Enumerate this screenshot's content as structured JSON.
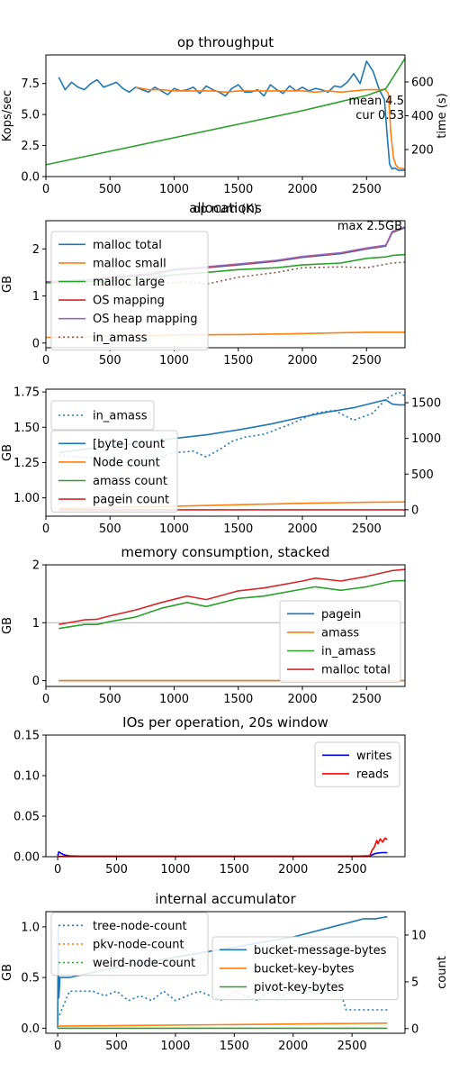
{
  "chart_data": [
    {
      "type": "line",
      "title": "op throughput",
      "xlabel": "op num (K)",
      "ylabel": "Kops/sec",
      "y2label": "time (s)",
      "xlim": [
        0,
        2800
      ],
      "ylim": [
        0,
        9.8
      ],
      "y2lim": [
        40,
        760
      ],
      "xticks": [
        0,
        500,
        1000,
        1500,
        2000,
        2500
      ],
      "yticks": [
        "0.0",
        "2.5",
        "5.0",
        "7.5"
      ],
      "y2ticks": [
        200,
        400,
        600
      ],
      "annotations": [
        "mean 4.5",
        "cur 0.53"
      ],
      "series": [
        {
          "color": "#1f77b4",
          "axis": "left",
          "x": [
            100,
            150,
            200,
            250,
            300,
            350,
            400,
            450,
            500,
            550,
            600,
            650,
            700,
            750,
            800,
            850,
            900,
            950,
            1000,
            1050,
            1100,
            1150,
            1200,
            1250,
            1300,
            1350,
            1400,
            1450,
            1500,
            1550,
            1600,
            1650,
            1700,
            1750,
            1800,
            1850,
            1900,
            1950,
            2000,
            2050,
            2100,
            2150,
            2200,
            2250,
            2300,
            2350,
            2400,
            2450,
            2500,
            2550,
            2600,
            2640,
            2660,
            2680,
            2700,
            2720,
            2750,
            2800
          ],
          "y": [
            8.0,
            7.0,
            7.6,
            7.2,
            7.0,
            7.5,
            7.8,
            7.2,
            7.4,
            7.6,
            7.1,
            6.8,
            7.2,
            7.0,
            6.8,
            7.2,
            6.9,
            6.6,
            7.1,
            6.9,
            7.0,
            7.2,
            6.7,
            7.3,
            7.0,
            6.8,
            6.5,
            7.1,
            7.4,
            6.8,
            6.8,
            7.0,
            6.5,
            7.4,
            7.0,
            6.7,
            7.3,
            6.9,
            7.2,
            6.9,
            7.1,
            7.0,
            6.8,
            7.3,
            7.2,
            7.6,
            8.3,
            7.5,
            9.3,
            8.5,
            7.0,
            6.2,
            3.5,
            1.0,
            0.6,
            0.7,
            0.5,
            0.5
          ]
        },
        {
          "color": "#ff7f0e",
          "axis": "left",
          "x": [
            700,
            800,
            900,
            1000,
            1100,
            1200,
            1300,
            1400,
            1500,
            1600,
            1700,
            1800,
            1900,
            2000,
            2100,
            2200,
            2300,
            2400,
            2500,
            2600,
            2650,
            2670,
            2690,
            2710,
            2730,
            2750,
            2800
          ],
          "y": [
            7.2,
            7.0,
            7.0,
            6.9,
            6.9,
            6.9,
            6.9,
            6.8,
            6.9,
            6.9,
            6.9,
            6.9,
            6.9,
            6.9,
            6.8,
            6.9,
            6.8,
            6.9,
            7.0,
            7.0,
            7.0,
            6.7,
            3.5,
            1.5,
            0.9,
            0.7,
            0.6
          ]
        },
        {
          "color": "#2ca02c",
          "axis": "right",
          "x": [
            0,
            500,
            1000,
            1500,
            2000,
            2500,
            2650,
            2700,
            2750,
            2800
          ],
          "y": [
            110,
            190,
            270,
            350,
            430,
            520,
            560,
            620,
            680,
            740
          ]
        }
      ]
    },
    {
      "type": "line",
      "title": "allocations",
      "ylabel": "GB",
      "xlim": [
        0,
        2800
      ],
      "ylim": [
        -0.1,
        2.6
      ],
      "xticks": [
        0,
        500,
        1000,
        1500,
        2000,
        2500
      ],
      "yticks": [
        0,
        1,
        2
      ],
      "annotations": [
        "max 2.5GB"
      ],
      "legend_position": "upper left",
      "series": [
        {
          "name": "malloc total",
          "color": "#1f77b4",
          "style": "solid",
          "x": [
            0,
            300,
            500,
            800,
            1000,
            1250,
            1500,
            1800,
            2000,
            2300,
            2500,
            2650,
            2700,
            2800
          ],
          "y": [
            1.3,
            1.33,
            1.38,
            1.45,
            1.55,
            1.6,
            1.66,
            1.74,
            1.82,
            1.9,
            2.0,
            2.06,
            2.35,
            2.45
          ]
        },
        {
          "name": "malloc small",
          "color": "#ff7f0e",
          "style": "solid",
          "x": [
            0,
            500,
            1000,
            1500,
            2000,
            2500,
            2800
          ],
          "y": [
            0.12,
            0.14,
            0.17,
            0.18,
            0.2,
            0.23,
            0.23
          ]
        },
        {
          "name": "malloc large",
          "color": "#2ca02c",
          "style": "solid",
          "x": [
            0,
            300,
            500,
            800,
            1000,
            1250,
            1500,
            1800,
            2000,
            2300,
            2500,
            2650,
            2700,
            2800
          ],
          "y": [
            1.28,
            1.3,
            1.32,
            1.37,
            1.45,
            1.5,
            1.56,
            1.6,
            1.66,
            1.7,
            1.8,
            1.83,
            1.86,
            1.88
          ]
        },
        {
          "name": "OS mapping",
          "color": "#d62728",
          "style": "solid",
          "x": [
            0,
            300,
            500,
            800,
            1000,
            1250,
            1500,
            1800,
            2000,
            2300,
            2500,
            2650,
            2700,
            2800
          ],
          "y": [
            1.3,
            1.34,
            1.39,
            1.46,
            1.56,
            1.61,
            1.67,
            1.75,
            1.83,
            1.91,
            2.01,
            2.07,
            2.36,
            2.46
          ]
        },
        {
          "name": "OS heap mapping",
          "color": "#9467bd",
          "style": "solid",
          "x": [
            0,
            300,
            500,
            800,
            1000,
            1250,
            1500,
            1800,
            2000,
            2300,
            2500,
            2650,
            2700,
            2800
          ],
          "y": [
            1.3,
            1.34,
            1.4,
            1.47,
            1.57,
            1.62,
            1.68,
            1.76,
            1.84,
            1.92,
            2.02,
            2.08,
            2.37,
            2.47
          ]
        },
        {
          "name": "in_amass",
          "color": "#8c564b",
          "style": "dotted",
          "x": [
            0,
            300,
            600,
            900,
            1100,
            1250,
            1500,
            1800,
            2000,
            2300,
            2500,
            2700,
            2800
          ],
          "y": [
            1.3,
            1.25,
            1.2,
            1.26,
            1.3,
            1.25,
            1.4,
            1.5,
            1.6,
            1.62,
            1.6,
            1.7,
            1.72
          ]
        }
      ]
    },
    {
      "type": "line",
      "ylabel": "GB",
      "xlim": [
        0,
        2800
      ],
      "ylim": [
        0.87,
        1.77
      ],
      "y2lim": [
        -90,
        1690
      ],
      "xticks": [
        0,
        500,
        1000,
        1500,
        2000,
        2500
      ],
      "yticks": [
        "1.00",
        "1.25",
        "1.50",
        "1.75"
      ],
      "y2ticks": [
        0,
        500,
        1000,
        1500
      ],
      "legend_position": "upper left / center left",
      "series": [
        {
          "name": "in_amass",
          "color": "#1f77b4",
          "style": "dotted",
          "axis": "left",
          "x": [
            100,
            400,
            700,
            1000,
            1150,
            1250,
            1350,
            1450,
            1550,
            1700,
            1900,
            2100,
            2250,
            2400,
            2550,
            2650,
            2750,
            2800
          ],
          "y": [
            1.3,
            1.28,
            1.25,
            1.32,
            1.33,
            1.29,
            1.34,
            1.4,
            1.43,
            1.45,
            1.52,
            1.6,
            1.62,
            1.55,
            1.6,
            1.7,
            1.75,
            1.72
          ]
        },
        {
          "name": "[byte] count",
          "color": "#1f77b4",
          "style": "solid",
          "axis": "right",
          "x": [
            100,
            400,
            700,
            1000,
            1250,
            1500,
            1750,
            2000,
            2200,
            2400,
            2600,
            2650,
            2700,
            2750,
            2800
          ],
          "y": [
            800,
            870,
            930,
            1000,
            1050,
            1120,
            1200,
            1300,
            1370,
            1430,
            1520,
            1540,
            1480,
            1470,
            1470
          ]
        },
        {
          "name": "Node count",
          "color": "#ff7f0e",
          "style": "solid",
          "axis": "right",
          "x": [
            100,
            500,
            1000,
            1500,
            2000,
            2500,
            2800
          ],
          "y": [
            20,
            30,
            50,
            70,
            90,
            105,
            110
          ]
        },
        {
          "name": "amass count",
          "color": "#2ca02c",
          "style": "solid",
          "axis": "right",
          "x": [],
          "y": []
        },
        {
          "name": "pagein count",
          "color": "#d62728",
          "style": "solid",
          "axis": "right",
          "x": [
            100,
            2800
          ],
          "y": [
            0,
            0
          ]
        }
      ]
    },
    {
      "type": "area",
      "title": "memory consumption, stacked",
      "ylabel": "GB",
      "xlim": [
        0,
        2800
      ],
      "ylim": [
        -0.1,
        2.0
      ],
      "xticks": [
        0,
        500,
        1000,
        1500,
        2000,
        2500
      ],
      "yticks": [
        0,
        1,
        2
      ],
      "legend_position": "lower right",
      "series": [
        {
          "name": "pagein",
          "color": "#1f77b4",
          "x": [
            100,
            2800
          ],
          "y": [
            0,
            0
          ]
        },
        {
          "name": "amass",
          "color": "#ff7f0e",
          "x": [
            100,
            2800
          ],
          "y": [
            0,
            0
          ]
        },
        {
          "name": "in_amass",
          "color": "#2ca02c",
          "x": [
            100,
            300,
            400,
            500,
            700,
            900,
            1100,
            1250,
            1500,
            1700,
            2000,
            2100,
            2300,
            2500,
            2700,
            2800
          ],
          "y": [
            0.9,
            0.97,
            0.97,
            1.02,
            1.1,
            1.25,
            1.35,
            1.28,
            1.42,
            1.46,
            1.58,
            1.62,
            1.56,
            1.62,
            1.72,
            1.73
          ]
        },
        {
          "name": "malloc total",
          "color": "#d62728",
          "x": [
            100,
            300,
            400,
            500,
            700,
            900,
            1100,
            1250,
            1500,
            1700,
            2000,
            2100,
            2300,
            2500,
            2700,
            2800
          ],
          "y": [
            0.97,
            1.05,
            1.06,
            1.12,
            1.22,
            1.35,
            1.46,
            1.4,
            1.55,
            1.6,
            1.72,
            1.77,
            1.72,
            1.8,
            1.9,
            1.92
          ]
        }
      ]
    },
    {
      "type": "line",
      "title": "IOs per operation, 20s window",
      "xlim": [
        -100,
        2950
      ],
      "ylim": [
        0,
        0.15
      ],
      "xticks": [
        0,
        500,
        1000,
        1500,
        2000,
        2500
      ],
      "yticks": [
        "0.00",
        "0.05",
        "0.10",
        "0.15"
      ],
      "legend_position": "upper right",
      "series": [
        {
          "name": "writes",
          "color": "#0000ff",
          "x": [
            0,
            10,
            30,
            60,
            100,
            200,
            500,
            1000,
            1500,
            2000,
            2500,
            2650,
            2700,
            2750,
            2800
          ],
          "y": [
            0.001,
            0.006,
            0.004,
            0.002,
            0.001,
            0.0005,
            0.0005,
            0.0005,
            0.0005,
            0.0005,
            0.0005,
            0.001,
            0.004,
            0.005,
            0.005
          ]
        },
        {
          "name": "reads",
          "color": "#ff0000",
          "x": [
            0,
            500,
            1000,
            1500,
            2000,
            2500,
            2650,
            2670,
            2690,
            2710,
            2720,
            2740,
            2760,
            2780,
            2800
          ],
          "y": [
            0.0005,
            0.0005,
            0.0005,
            0.0005,
            0.0005,
            0.0005,
            0.001,
            0.008,
            0.012,
            0.02,
            0.016,
            0.022,
            0.018,
            0.023,
            0.021
          ]
        }
      ]
    },
    {
      "type": "line",
      "title": "internal accumulator",
      "ylabel": "GB",
      "y2label": "count",
      "xlim": [
        -100,
        2950
      ],
      "ylim": [
        -0.05,
        1.15
      ],
      "y2lim": [
        -0.5,
        12.5
      ],
      "xticks": [
        0,
        500,
        1000,
        1500,
        2000,
        2500
      ],
      "yticks": [
        "0.0",
        "0.5",
        "1.0"
      ],
      "y2ticks": [
        0,
        5,
        10
      ],
      "series": [
        {
          "name": "tree-node-count",
          "color": "#1f77b4",
          "style": "dotted",
          "axis": "right",
          "x": [
            0,
            100,
            200,
            300,
            400,
            500,
            600,
            700,
            800,
            900,
            1000,
            1100,
            1200,
            1300,
            1400,
            1500,
            1600,
            1700,
            1800,
            1900,
            2000,
            2100,
            2200,
            2300,
            2400,
            2450,
            2600,
            2800
          ],
          "y": [
            1,
            4,
            4,
            4,
            3.5,
            4,
            3,
            3.5,
            3,
            4,
            3,
            3.5,
            4,
            3.5,
            3,
            4,
            3.5,
            3,
            4,
            3.5,
            4,
            4,
            4,
            4,
            4,
            2,
            2,
            2
          ]
        },
        {
          "name": "pkv-node-count",
          "color": "#ff7f0e",
          "style": "dotted",
          "axis": "right",
          "x": [],
          "y": []
        },
        {
          "name": "weird-node-count",
          "color": "#2ca02c",
          "style": "dotted",
          "axis": "right",
          "x": [],
          "y": []
        },
        {
          "name": "bucket-message-bytes",
          "color": "#1f77b4",
          "style": "solid",
          "axis": "left",
          "x": [
            0,
            5,
            10,
            20,
            100,
            500,
            1000,
            1500,
            2000,
            2500,
            2600,
            2700,
            2800
          ],
          "y": [
            0.0,
            1.0,
            0.3,
            0.5,
            0.5,
            0.6,
            0.7,
            0.8,
            0.9,
            1.05,
            1.08,
            1.08,
            1.1
          ]
        },
        {
          "name": "bucket-key-bytes",
          "color": "#ff7f0e",
          "style": "solid",
          "axis": "left",
          "x": [
            0,
            2800
          ],
          "y": [
            0.02,
            0.05
          ]
        },
        {
          "name": "pivot-key-bytes",
          "color": "#2ca02c",
          "style": "solid",
          "axis": "left",
          "x": [
            0,
            2800
          ],
          "y": [
            0.0,
            0.0
          ]
        }
      ]
    }
  ]
}
